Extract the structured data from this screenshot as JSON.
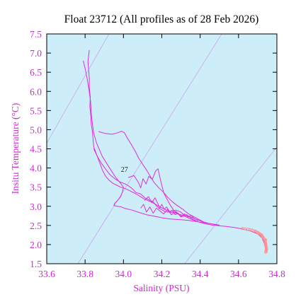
{
  "chart_data": {
    "type": "line",
    "title": "Float 23712  (All profiles as of 28 Feb 2026)",
    "xlabel": "Salinity (PSU)",
    "ylabel": "Insitu Temperature (°C)",
    "xlim": [
      33.6,
      34.8
    ],
    "ylim": [
      1.5,
      7.5
    ],
    "xticks": [
      "33.6",
      "33.8",
      "34.0",
      "34.2",
      "34.4",
      "34.6",
      "34.8"
    ],
    "yticks": [
      "1.5",
      "2.0",
      "2.5",
      "3.0",
      "3.5",
      "4.0",
      "4.5",
      "5.0",
      "5.5",
      "6.0",
      "6.5",
      "7.0",
      "7.5"
    ],
    "density_contour_label": "27",
    "grid": false,
    "colors": {
      "plot_background": "#cdeef8",
      "profile_line": "#e02be0",
      "deep_points": "#ff8f8f",
      "density_contours": "#c9a6ef",
      "axis_text": "#d426d4",
      "frame": "#000000"
    },
    "series": [
      {
        "name": "",
        "style": "line",
        "x": [
          33.822,
          33.818,
          33.815,
          33.818,
          33.822,
          33.822,
          33.827,
          33.825,
          33.83,
          33.832,
          33.838,
          33.842,
          33.845,
          33.86,
          33.875,
          33.89,
          33.905,
          33.925,
          33.945,
          33.965,
          33.985,
          34.01,
          34.035,
          34.055,
          34.08,
          34.105,
          34.14,
          34.165,
          34.19,
          34.215,
          34.24,
          34.275,
          34.31,
          34.345,
          34.385,
          34.42,
          34.46,
          34.5,
          34.545,
          34.585,
          34.625,
          34.665,
          34.7,
          34.722,
          34.735,
          34.742
        ],
        "y": [
          7.08,
          6.9,
          6.78,
          6.6,
          6.35,
          6.1,
          5.85,
          5.6,
          5.35,
          5.15,
          4.95,
          4.72,
          4.55,
          4.35,
          4.15,
          3.95,
          3.8,
          3.68,
          3.6,
          3.55,
          3.5,
          3.46,
          3.4,
          3.35,
          3.28,
          3.2,
          3.12,
          3.06,
          2.98,
          2.92,
          2.86,
          2.82,
          2.76,
          2.68,
          2.6,
          2.55,
          2.51,
          2.49,
          2.47,
          2.44,
          2.4,
          2.35,
          2.28,
          2.18,
          2.02,
          1.85
        ]
      },
      {
        "name": "",
        "style": "line",
        "x": [
          33.79,
          33.8,
          33.81,
          33.82,
          33.828,
          33.832,
          33.838,
          33.845,
          33.86,
          33.89,
          33.93,
          33.96,
          33.985,
          34.0,
          33.995,
          33.985,
          33.97,
          33.955,
          33.95,
          33.968,
          33.99,
          34.01,
          34.045,
          34.08,
          34.12,
          34.16,
          34.2,
          34.24,
          34.27,
          34.3,
          34.34,
          34.38,
          34.42,
          34.46,
          34.5
        ],
        "y": [
          6.8,
          6.6,
          6.35,
          6.05,
          5.75,
          5.45,
          5.15,
          4.9,
          4.65,
          4.3,
          3.98,
          3.75,
          3.6,
          3.5,
          3.38,
          3.25,
          3.15,
          3.08,
          3.02,
          3.0,
          2.98,
          2.94,
          2.9,
          2.84,
          2.78,
          2.74,
          2.7,
          2.67,
          2.66,
          2.65,
          2.63,
          2.6,
          2.57,
          2.54,
          2.51
        ]
      },
      {
        "name": "",
        "style": "line",
        "x": [
          33.845,
          33.862,
          33.885,
          33.91,
          33.93,
          33.955,
          33.98,
          34.01,
          34.03,
          34.048,
          34.065,
          34.09,
          34.112,
          34.135,
          34.155,
          34.17,
          34.185,
          34.2,
          34.215,
          34.23,
          34.25,
          34.272,
          34.295,
          34.32,
          34.35,
          34.38,
          34.41,
          34.44,
          34.47,
          34.5
        ],
        "y": [
          4.5,
          4.32,
          4.12,
          3.95,
          3.82,
          3.72,
          3.64,
          3.58,
          3.52,
          3.45,
          3.36,
          3.32,
          3.22,
          3.16,
          3.12,
          3.02,
          2.95,
          2.91,
          2.86,
          2.85,
          2.84,
          2.9,
          2.86,
          2.76,
          2.72,
          2.66,
          2.6,
          2.56,
          2.53,
          2.5
        ]
      },
      {
        "name": "",
        "style": "line",
        "x": [
          33.87,
          33.905,
          33.94,
          33.97,
          33.99,
          34.005,
          34.02,
          34.04,
          34.06,
          34.08,
          34.1,
          34.12,
          34.14,
          34.16,
          34.185,
          34.21,
          34.23,
          34.255,
          34.28,
          34.31,
          34.34,
          34.37,
          34.4,
          34.43
        ],
        "y": [
          4.95,
          4.9,
          4.88,
          4.92,
          4.96,
          4.92,
          4.78,
          4.62,
          4.45,
          4.25,
          4.1,
          3.95,
          3.78,
          3.62,
          3.48,
          3.36,
          3.24,
          3.12,
          3.02,
          2.92,
          2.8,
          2.72,
          2.64,
          2.56
        ]
      },
      {
        "name": "",
        "style": "line",
        "x": [
          34.025,
          34.055,
          34.078,
          34.09,
          34.102,
          34.118,
          34.132,
          34.15,
          34.168,
          34.18,
          34.195,
          34.21,
          34.228,
          34.245,
          34.265,
          34.285,
          34.305
        ],
        "y": [
          3.75,
          3.8,
          3.62,
          3.48,
          3.72,
          3.58,
          3.78,
          3.7,
          3.92,
          3.98,
          3.65,
          3.35,
          3.18,
          3.02,
          2.88,
          2.8,
          2.72
        ]
      },
      {
        "name": "",
        "style": "line",
        "x": [
          34.11,
          34.13,
          34.148,
          34.165,
          34.178,
          34.19,
          34.2,
          34.212,
          34.225,
          34.24,
          34.255,
          34.27,
          34.285,
          34.3,
          34.318,
          34.335,
          34.352,
          34.37,
          34.39
        ],
        "y": [
          3.15,
          3.25,
          3.1,
          3.22,
          3.08,
          2.96,
          3.05,
          2.92,
          2.98,
          2.86,
          2.9,
          2.78,
          2.82,
          2.74,
          2.8,
          2.72,
          2.76,
          2.68,
          2.62
        ]
      },
      {
        "name": "",
        "style": "line",
        "x": [
          34.09,
          34.105,
          34.12,
          34.138,
          34.155,
          34.172,
          34.19,
          34.21,
          34.23,
          34.25,
          34.275,
          34.3,
          34.33,
          34.355,
          34.385
        ],
        "y": [
          2.95,
          3.05,
          2.85,
          2.98,
          2.82,
          2.95,
          2.88,
          2.8,
          2.92,
          2.78,
          2.86,
          2.72,
          2.78,
          2.68,
          2.6
        ]
      },
      {
        "name": "",
        "style": "points",
        "x": [
          34.62,
          34.635,
          34.65,
          34.66,
          34.67,
          34.68,
          34.688,
          34.695,
          34.702,
          34.708,
          34.714,
          34.72,
          34.724,
          34.728,
          34.732,
          34.735,
          34.738,
          34.74,
          34.742,
          34.743,
          34.744,
          34.745,
          34.745,
          34.744,
          34.742,
          34.74,
          34.738,
          34.743,
          34.746,
          34.741
        ],
        "y": [
          2.42,
          2.41,
          2.4,
          2.39,
          2.38,
          2.36,
          2.35,
          2.33,
          2.31,
          2.29,
          2.27,
          2.25,
          2.22,
          2.19,
          2.16,
          2.13,
          2.1,
          2.06,
          2.02,
          1.98,
          1.94,
          1.9,
          1.86,
          1.83,
          1.8,
          2.0,
          2.08,
          1.95,
          1.88,
          2.12
        ]
      }
    ],
    "density_contours": [
      {
        "x": [
          33.6,
          34.05
        ],
        "y": [
          4.65,
          8.6
        ]
      },
      {
        "x": [
          33.6,
          34.6
        ],
        "y": [
          0.2,
          8.2
        ]
      },
      {
        "x": [
          34.24,
          34.8
        ],
        "y": [
          1.0,
          4.55
        ]
      }
    ],
    "annotations": [
      {
        "text": "27",
        "x": 34.005,
        "y": 3.9
      }
    ]
  }
}
